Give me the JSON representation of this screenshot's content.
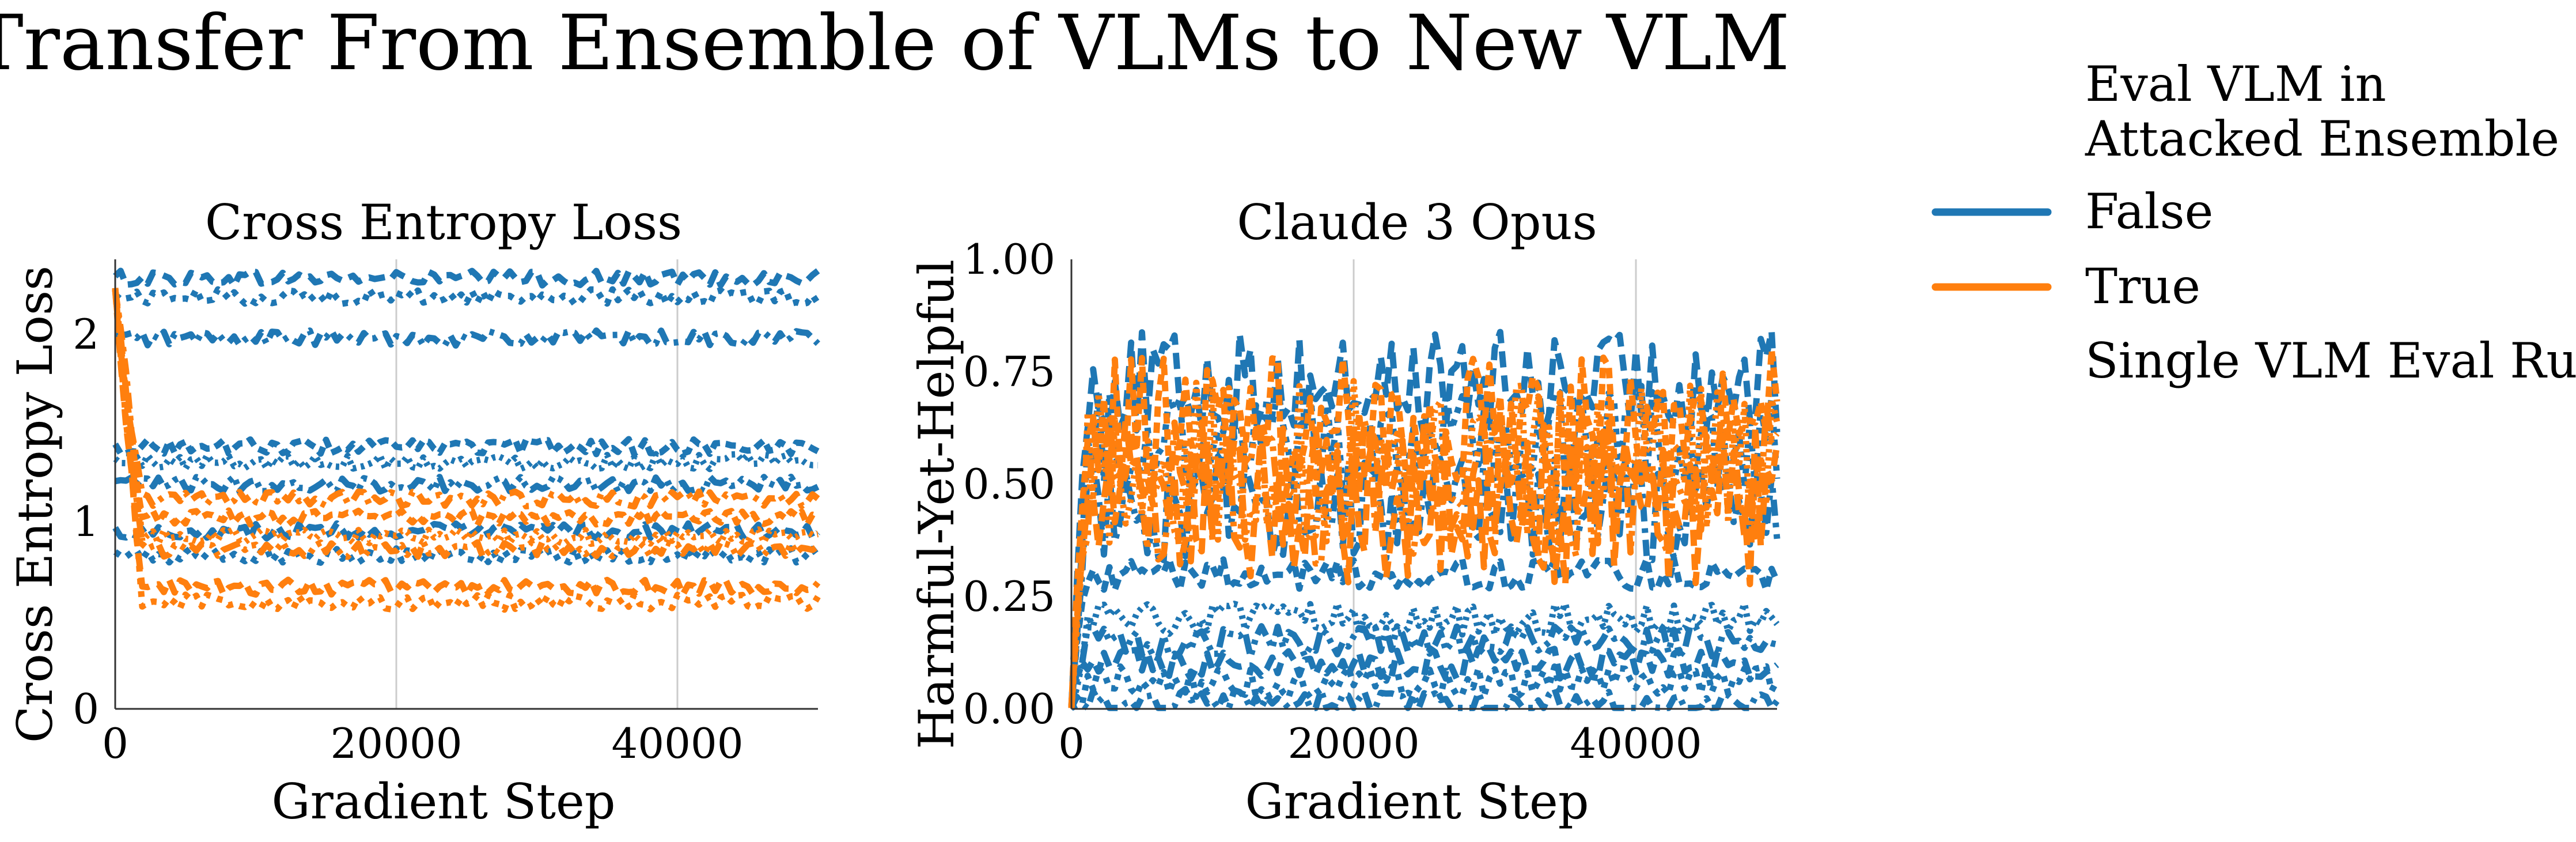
{
  "chart_data": {
    "suptitle": "Transfer From Ensemble of VLMs to New VLM",
    "legend": {
      "title_lines": [
        "Eval VLM in",
        "Attacked Ensemble"
      ],
      "entries": [
        {
          "label": "False",
          "color": "#1f77b4"
        },
        {
          "label": "True",
          "color": "#ff7f0e"
        },
        {
          "label": "Single VLM Eval Run"
        }
      ],
      "placement": "right"
    },
    "panels": [
      {
        "type": "line",
        "title": "Cross Entropy Loss",
        "xlabel": "Gradient Step",
        "ylabel": "Cross Entropy Loss",
        "xlim": [
          0,
          50000
        ],
        "ylim": [
          0,
          2.4
        ],
        "xticks": [
          0,
          20000,
          40000
        ],
        "xtick_labels": [
          "0",
          "20000",
          "40000"
        ],
        "yticks": [
          0,
          1,
          2
        ],
        "ytick_labels": [
          "0",
          "1",
          "2"
        ],
        "grid": "vertical",
        "series_summary": [
          {
            "group": "False",
            "color": "#1f77b4",
            "level": 2.3
          },
          {
            "group": "False",
            "color": "#1f77b4",
            "level": 2.2
          },
          {
            "group": "False",
            "color": "#1f77b4",
            "level": 1.98
          },
          {
            "group": "False",
            "color": "#1f77b4",
            "level": 1.4
          },
          {
            "group": "False",
            "color": "#1f77b4",
            "level": 1.32
          },
          {
            "group": "False",
            "color": "#1f77b4",
            "level": 1.2
          },
          {
            "group": "False",
            "color": "#1f77b4",
            "level": 0.95
          },
          {
            "group": "False",
            "color": "#1f77b4",
            "level": 0.82
          },
          {
            "group": "True",
            "color": "#ff7f0e",
            "level": 1.12
          },
          {
            "group": "True",
            "color": "#ff7f0e",
            "level": 1.02
          },
          {
            "group": "True",
            "color": "#ff7f0e",
            "level": 0.92
          },
          {
            "group": "True",
            "color": "#ff7f0e",
            "level": 0.85
          },
          {
            "group": "True",
            "color": "#ff7f0e",
            "level": 0.65
          },
          {
            "group": "True",
            "color": "#ff7f0e",
            "level": 0.57
          }
        ]
      },
      {
        "type": "line",
        "title": "Claude 3 Opus",
        "xlabel": "Gradient Step",
        "ylabel": "Harmful-Yet-Helpful",
        "xlim": [
          0,
          50000
        ],
        "ylim": [
          0,
          1
        ],
        "xticks": [
          0,
          20000,
          40000
        ],
        "xtick_labels": [
          "0",
          "20000",
          "40000"
        ],
        "yticks": [
          0,
          0.25,
          0.5,
          0.75,
          1
        ],
        "ytick_labels": [
          "0.00",
          "0.25",
          "0.50",
          "0.75",
          "1.00"
        ],
        "grid": "vertical",
        "series_summary": [
          {
            "group": "False",
            "color": "#1f77b4",
            "level": 0.72
          },
          {
            "group": "False",
            "color": "#1f77b4",
            "level": 0.6
          },
          {
            "group": "False",
            "color": "#1f77b4",
            "level": 0.45
          },
          {
            "group": "False",
            "color": "#1f77b4",
            "level": 0.3
          },
          {
            "group": "False",
            "color": "#1f77b4",
            "level": 0.2
          },
          {
            "group": "False",
            "color": "#1f77b4",
            "level": 0.15
          },
          {
            "group": "False",
            "color": "#1f77b4",
            "level": 0.1
          },
          {
            "group": "False",
            "color": "#1f77b4",
            "level": 0.06
          },
          {
            "group": "False",
            "color": "#1f77b4",
            "level": 0.01
          },
          {
            "group": "True",
            "color": "#ff7f0e",
            "level": 0.62
          },
          {
            "group": "True",
            "color": "#ff7f0e",
            "level": 0.55
          },
          {
            "group": "True",
            "color": "#ff7f0e",
            "level": 0.5
          },
          {
            "group": "True",
            "color": "#ff7f0e",
            "level": 0.45
          }
        ]
      }
    ]
  }
}
